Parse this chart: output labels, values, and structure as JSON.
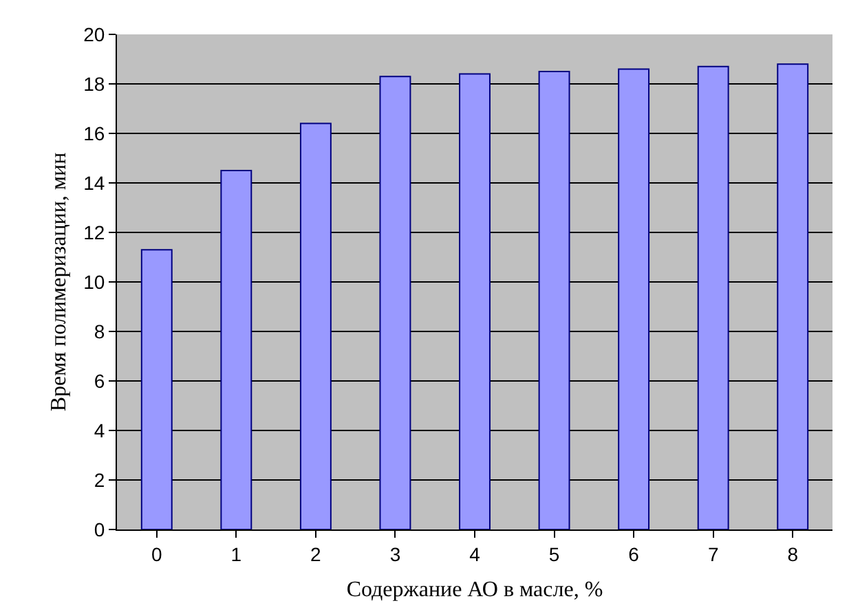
{
  "chart_data": {
    "type": "bar",
    "xlabel": "Содержание АО в масле, %",
    "ylabel": "Время полимеризации, мин",
    "categories": [
      "0",
      "1",
      "2",
      "3",
      "4",
      "5",
      "6",
      "7",
      "8"
    ],
    "values": [
      11.3,
      14.5,
      16.4,
      18.3,
      18.4,
      18.5,
      18.6,
      18.7,
      18.8
    ],
    "color": "#9999ff",
    "ylim": [
      0,
      20
    ],
    "yticks": [
      0,
      2,
      4,
      6,
      8,
      10,
      12,
      14,
      16,
      18,
      20
    ],
    "grid": "y"
  }
}
